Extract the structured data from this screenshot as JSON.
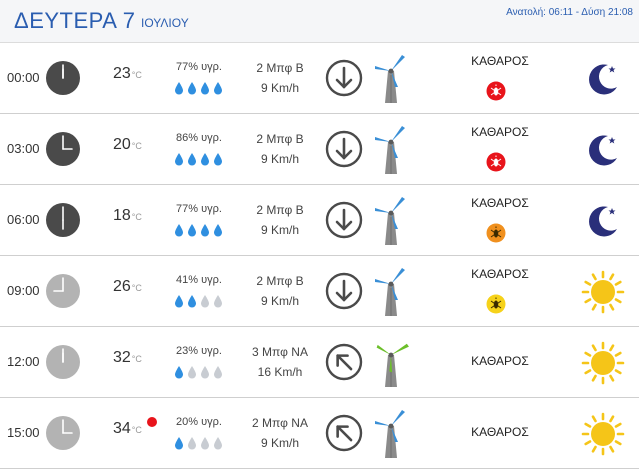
{
  "header": {
    "day": "ΔΕΥΤΕΡΑ 7",
    "month": "ΙΟΥΛΙΟΥ",
    "sun_times": "Ανατολή: 06:11 - Δύση 21:08"
  },
  "colors": {
    "accent": "#2a5db0",
    "night_clock": "#4a4a4a",
    "day_clock": "#b3b3b3",
    "drop_full": "#2f8fe0",
    "drop_empty": "#c8ccd2",
    "turbine_blade": "#3a8fd6",
    "turbine_blade_strong": "#6cbf2a",
    "moon": "#2a2f7a",
    "sun": "#f5c518"
  },
  "rows": [
    {
      "time": "00:00",
      "clock_icon": "night-clock-icon",
      "hour": 0,
      "temp": "23",
      "temp_unit": "°C",
      "alert_dot": false,
      "humidity": "77% υγρ.",
      "drops_filled": 4,
      "wind_force": "2 Μπφ Β",
      "wind_speed": "9 Km/h",
      "arrow_dir": "down",
      "blade_color": "blue",
      "sky": "ΚΑΘΑΡΟΣ",
      "badge": "red",
      "weather_icon": "moon-icon"
    },
    {
      "time": "03:00",
      "clock_icon": "night-clock-icon",
      "hour": 3,
      "temp": "20",
      "temp_unit": "°C",
      "alert_dot": false,
      "humidity": "86% υγρ.",
      "drops_filled": 4,
      "wind_force": "2 Μπφ Β",
      "wind_speed": "9 Km/h",
      "arrow_dir": "down",
      "blade_color": "blue",
      "sky": "ΚΑΘΑΡΟΣ",
      "badge": "red",
      "weather_icon": "moon-icon"
    },
    {
      "time": "06:00",
      "clock_icon": "night-clock-icon",
      "hour": 6,
      "temp": "18",
      "temp_unit": "°C",
      "alert_dot": false,
      "humidity": "77% υγρ.",
      "drops_filled": 4,
      "wind_force": "2 Μπφ Β",
      "wind_speed": "9 Km/h",
      "arrow_dir": "down",
      "blade_color": "blue",
      "sky": "ΚΑΘΑΡΟΣ",
      "badge": "orange",
      "weather_icon": "moon-icon"
    },
    {
      "time": "09:00",
      "clock_icon": "day-clock-icon",
      "hour": 9,
      "temp": "26",
      "temp_unit": "°C",
      "alert_dot": false,
      "humidity": "41% υγρ.",
      "drops_filled": 2,
      "wind_force": "2 Μπφ Β",
      "wind_speed": "9 Km/h",
      "arrow_dir": "down",
      "blade_color": "blue",
      "sky": "ΚΑΘΑΡΟΣ",
      "badge": "yellow",
      "weather_icon": "sun-icon"
    },
    {
      "time": "12:00",
      "clock_icon": "day-clock-icon",
      "hour": 12,
      "temp": "32",
      "temp_unit": "°C",
      "alert_dot": false,
      "humidity": "23% υγρ.",
      "drops_filled": 1,
      "wind_force": "3 Μπφ ΝΑ",
      "wind_speed": "16 Km/h",
      "arrow_dir": "up-left",
      "blade_color": "green",
      "sky": "ΚΑΘΑΡΟΣ",
      "badge": "",
      "weather_icon": "sun-icon"
    },
    {
      "time": "15:00",
      "clock_icon": "day-clock-icon",
      "hour": 15,
      "temp": "34",
      "temp_unit": "°C",
      "alert_dot": true,
      "humidity": "20% υγρ.",
      "drops_filled": 1,
      "wind_force": "2 Μπφ ΝΑ",
      "wind_speed": "9 Km/h",
      "arrow_dir": "up-left",
      "blade_color": "blue",
      "sky": "ΚΑΘΑΡΟΣ",
      "badge": "",
      "weather_icon": "sun-icon"
    }
  ]
}
